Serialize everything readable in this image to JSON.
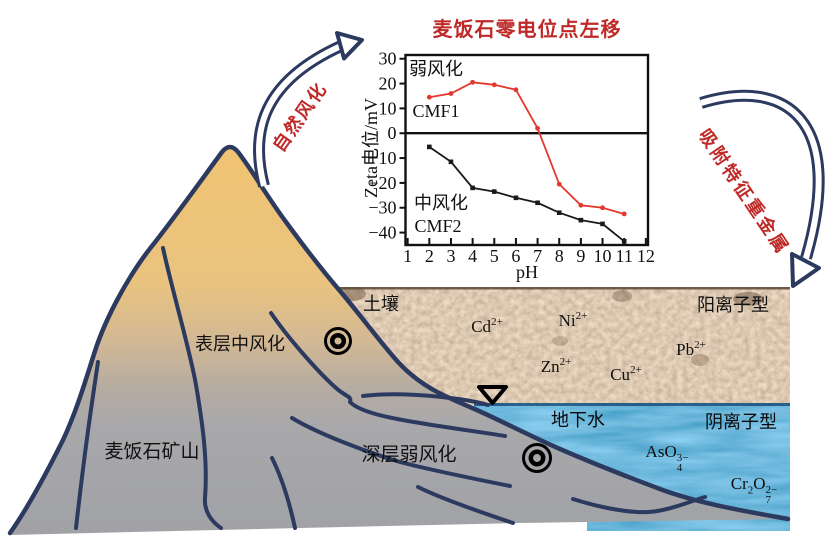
{
  "figure": {
    "description_labels": {
      "soil": "土壤",
      "cation_type": "阳离子型",
      "groundwater": "地下水",
      "anion_type": "阴离子型",
      "surface_weathering": "表层中风化",
      "mine": "麦饭石矿山",
      "deep_weathering": "深层弱风化"
    },
    "arrows": {
      "left_label": "自然风化",
      "right_label": "吸附特征重金属"
    },
    "soil_ions": {
      "cd": {
        "segments": [
          {
            "t": "Cd"
          },
          {
            "t": "2+",
            "style": "sup"
          }
        ]
      },
      "ni": {
        "segments": [
          {
            "t": "Ni"
          },
          {
            "t": "2+",
            "style": "sup"
          }
        ]
      },
      "zn": {
        "segments": [
          {
            "t": "Zn"
          },
          {
            "t": "2+",
            "style": "sup"
          }
        ]
      },
      "cu": {
        "segments": [
          {
            "t": "Cu"
          },
          {
            "t": "2+",
            "style": "sup"
          }
        ]
      },
      "pb": {
        "segments": [
          {
            "t": "Pb"
          },
          {
            "t": "2+",
            "style": "sup"
          }
        ]
      }
    },
    "water_ions": {
      "aso4": {
        "segments": [
          {
            "t": "AsO"
          },
          {
            "style": "stack",
            "sup": "3−",
            "sub": "4"
          }
        ]
      },
      "cr2o7": {
        "segments": [
          {
            "t": "Cr"
          },
          {
            "t": "2",
            "style": "sub"
          },
          {
            "t": "O"
          },
          {
            "style": "stack",
            "sup": "2−",
            "sub": "7"
          }
        ]
      }
    },
    "colors": {
      "accent_red_text": "#bf2a28",
      "line_red": "#e4372e",
      "line_black": "#1a1a1a",
      "outline_navy": "#2c3a60",
      "mountain_top": "#f0c473",
      "mountain_gray": "#a6a7ab",
      "soil_base": "#c2a085",
      "water_base": "#2380bf"
    }
  },
  "chart_data": {
    "type": "line",
    "title": "麦饭石零电位点左移",
    "xlabel": "pH",
    "ylabel": "Zeta电位/mV",
    "xlim": [
      0.9,
      12.1
    ],
    "ylim": [
      -45,
      31.5
    ],
    "grid": false,
    "zero_line": true,
    "legend_position": "annotations inside plot",
    "xticks": [
      1,
      2,
      3,
      4,
      5,
      6,
      7,
      8,
      9,
      10,
      11,
      12
    ],
    "yticks": [
      30,
      20,
      10,
      0,
      -10,
      -20,
      -30,
      -40
    ],
    "x": [
      2,
      3,
      4,
      5,
      6,
      7,
      8,
      9,
      10,
      11
    ],
    "series": [
      {
        "name": "CMF1",
        "label": "弱风化",
        "color": "#e4372e",
        "marker": "circle",
        "values": [
          14.5,
          16,
          20.5,
          19.5,
          17.5,
          2,
          -20.5,
          -29,
          -30,
          -32.5
        ]
      },
      {
        "name": "CMF2",
        "label": "中风化",
        "color": "#1a1a1a",
        "marker": "square",
        "values": [
          -5.5,
          -11.5,
          -22,
          -23.5,
          -26,
          -28,
          -32,
          -35,
          -36.5,
          -43.5
        ]
      }
    ]
  }
}
